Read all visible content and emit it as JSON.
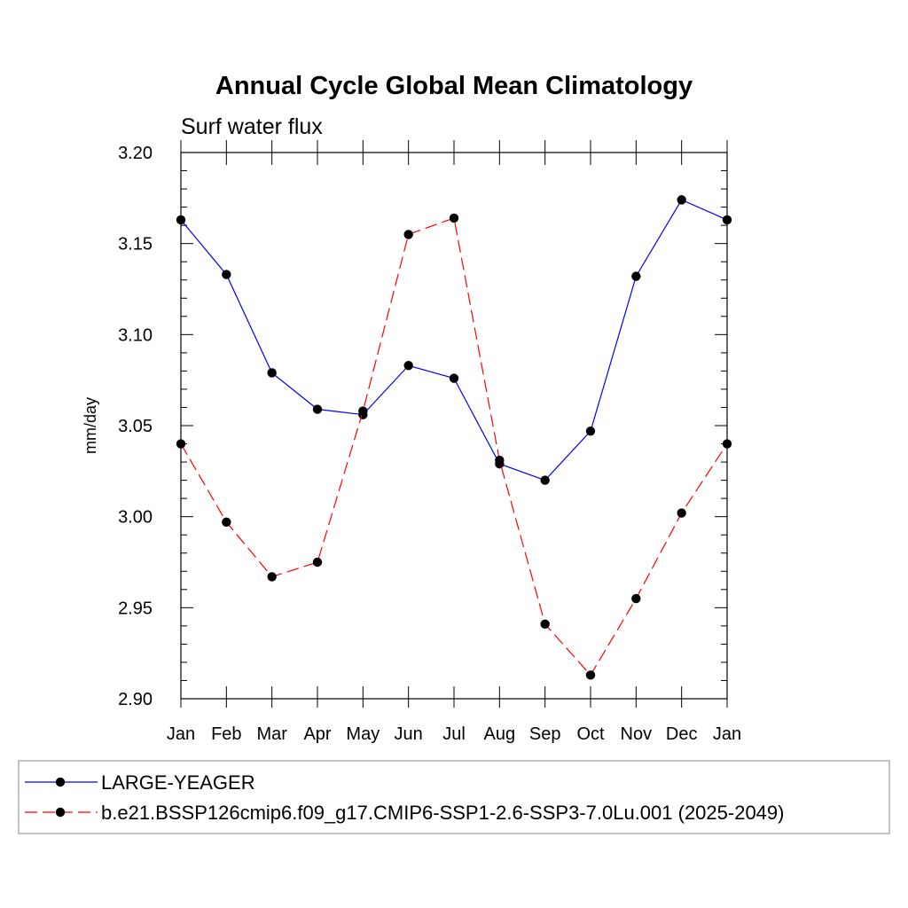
{
  "chart_data": {
    "type": "line",
    "title": "Annual Cycle Global Mean Climatology",
    "subtitle": "Surf water flux",
    "xlabel": "",
    "ylabel": "mm/day",
    "categories": [
      "Jan",
      "Feb",
      "Mar",
      "Apr",
      "May",
      "Jun",
      "Jul",
      "Aug",
      "Sep",
      "Oct",
      "Nov",
      "Dec",
      "Jan"
    ],
    "ylim": [
      2.9,
      3.2
    ],
    "yticks": [
      "3.20",
      "3.15",
      "3.10",
      "3.05",
      "3.00",
      "2.95",
      "2.90"
    ],
    "grid": false,
    "legend_position": "bottom",
    "series": [
      {
        "name": "LARGE-YEAGER",
        "color": "#0000ff",
        "style": "solid",
        "marker": "circle",
        "values": [
          3.163,
          3.133,
          3.079,
          3.059,
          3.056,
          3.083,
          3.076,
          3.029,
          3.02,
          3.047,
          3.132,
          3.174,
          3.163
        ]
      },
      {
        "name": "b.e21.BSSP126cmip6.f09_g17.CMIP6-SSP1-2.6-SSP3-7.0Lu.001 (2025-2049)",
        "color": "#ff0000",
        "style": "dashed",
        "marker": "circle",
        "values": [
          3.04,
          2.997,
          2.967,
          2.975,
          3.058,
          3.155,
          3.164,
          3.031,
          2.941,
          2.913,
          2.955,
          3.002,
          3.04
        ]
      }
    ]
  }
}
